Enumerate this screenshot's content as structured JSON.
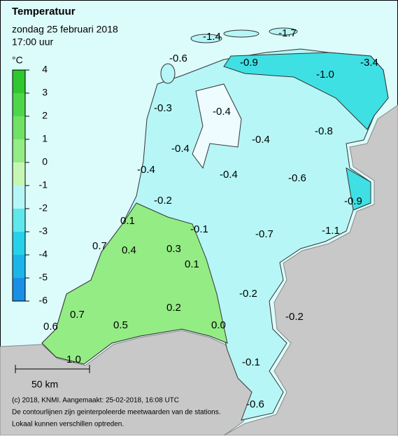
{
  "header": {
    "title": "Temperatuur",
    "date": "zondag 25 februari 2018",
    "time": "17:00 uur"
  },
  "legend": {
    "unit": "°C",
    "ticks": [
      4,
      3,
      2,
      1,
      0,
      -1,
      -2,
      -3,
      -4,
      -5,
      -6
    ],
    "colors": [
      "#2ec82e",
      "#4ed64a",
      "#6fe266",
      "#94ec84",
      "#c6f6b4",
      "#b6f6f6",
      "#5ee8ec",
      "#26d2ea",
      "#1ab6ea",
      "#1a8fe6"
    ]
  },
  "stations": [
    "-1.4",
    "-1.7",
    "-0.6",
    "-0.9",
    "-1.0",
    "-3.4",
    "-0.3",
    "-0.4",
    "-0.8",
    "-0.4",
    "-0.4",
    "-0.4",
    "-0.4",
    "-0.6",
    "-0.2",
    "-0.9",
    "0.1",
    "-0.1",
    "-0.7",
    "-1.1",
    "0.7",
    "0.4",
    "0.3",
    "0.1",
    "-0.2",
    "-0.2",
    "0.7",
    "0.2",
    "0.6",
    "0.5",
    "0.0",
    "-0.1",
    "1.0",
    "-0.6"
  ],
  "scale": "50 km",
  "footer": [
    "(c) 2018, KNMI. Aangemaakt: 25-02-2018, 16:08 UTC",
    "De contourlijnen zijn geinterpoleerde meetwaarden van de stations.",
    "Lokaal kunnen verschillen optreden."
  ]
}
